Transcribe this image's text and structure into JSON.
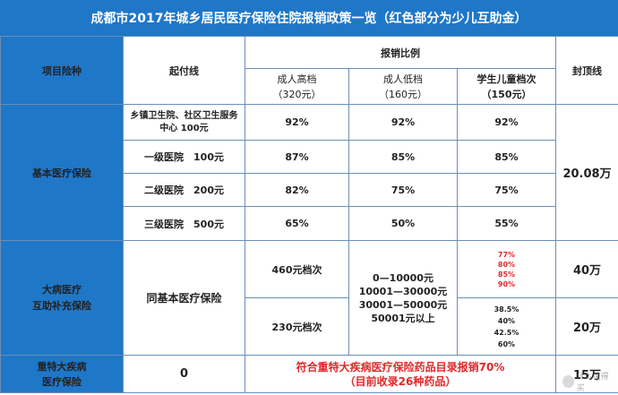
{
  "title": "成都市2017年城乡居民医疗保险住院报销政策一览（红色部分为少儿互助金）",
  "header": {
    "category": "项目险种",
    "deductible": "起付线",
    "ratio": "报销比例",
    "cap": "封顶线",
    "tiers": [
      {
        "name": "成人高档",
        "amount": "（320元）",
        "highlight": false
      },
      {
        "name": "成人低档",
        "amount": "（160元）",
        "highlight": false
      },
      {
        "name": "学生儿童档次",
        "amount": "（150元）",
        "highlight": true
      }
    ]
  },
  "basic": {
    "label": "基本医疗保险",
    "cap": "20.08万",
    "rows": [
      {
        "level": "乡镇卫生院、社区卫生服务中心 100元",
        "high": "92%",
        "low": "92%",
        "student": "92%"
      },
      {
        "level": "一级医院　100元",
        "high": "87%",
        "low": "85%",
        "student": "85%"
      },
      {
        "level": "二级医院　200元",
        "high": "82%",
        "low": "75%",
        "student": "75%"
      },
      {
        "level": "三级医院　500元",
        "high": "65%",
        "low": "50%",
        "student": "55%"
      }
    ]
  },
  "major": {
    "label_line1": "大病医疗",
    "label_line2": "互助补充保险",
    "deductible": "同基本医疗保险",
    "tier_a": "460元档次",
    "tier_b": "230元档次",
    "bands": [
      "0—10000元",
      "10001—30000元",
      "30001—50000元",
      "50001元以上"
    ],
    "rates_a": [
      "77%",
      "80%",
      "85%",
      "90%"
    ],
    "rates_b": [
      "38.5%",
      "40%",
      "42.5%",
      "60%"
    ],
    "cap_a": "40万",
    "cap_b": "20万"
  },
  "special": {
    "label_line1": "重特大疾病",
    "label_line2": "医疗保险",
    "deductible": "0",
    "note_line1": "符合重特大疾病医疗保险药品目录报销70%",
    "note_line2": "（目前收录26种药品）",
    "cap": "15万"
  },
  "watermark": "什么值得买"
}
